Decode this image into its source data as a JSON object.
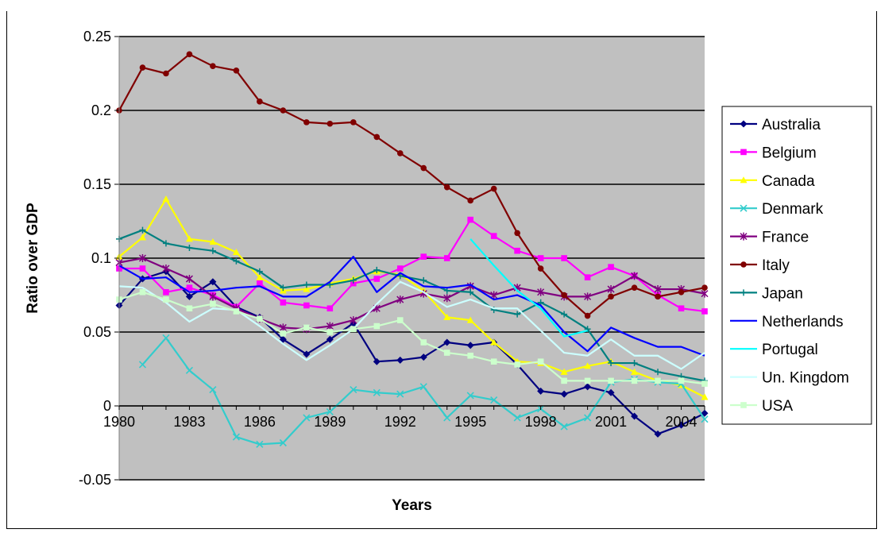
{
  "chart_data": {
    "type": "line",
    "title": "",
    "xlabel": "Years",
    "ylabel": "Ratio over GDP",
    "ylim": [
      -0.05,
      0.25
    ],
    "xlim": [
      1980,
      2005
    ],
    "yticks": [
      "-0.05",
      "0",
      "0.05",
      "0.1",
      "0.15",
      "0.2",
      "0.25"
    ],
    "xticks": [
      "1980",
      "1983",
      "1986",
      "1989",
      "1992",
      "1995",
      "1998",
      "2001",
      "2004"
    ],
    "plot_background": "#c0c0c0",
    "grid": true,
    "legend_position": "right",
    "x": [
      1980,
      1981,
      1982,
      1983,
      1984,
      1985,
      1986,
      1987,
      1988,
      1989,
      1990,
      1991,
      1992,
      1993,
      1994,
      1995,
      1996,
      1997,
      1998,
      1999,
      2000,
      2001,
      2002,
      2003,
      2004,
      2005
    ],
    "series": [
      {
        "name": "Australia",
        "color": "#000080",
        "marker": "diamond",
        "values": [
          0.068,
          0.086,
          0.091,
          0.074,
          0.084,
          0.067,
          0.06,
          0.045,
          0.035,
          0.045,
          0.056,
          0.03,
          0.031,
          0.033,
          0.043,
          0.041,
          0.043,
          0.028,
          0.01,
          0.008,
          0.013,
          0.009,
          -0.007,
          -0.019,
          -0.013,
          -0.005
        ]
      },
      {
        "name": "Belgium",
        "color": "#ff00ff",
        "marker": "square",
        "values": [
          0.093,
          0.093,
          0.077,
          0.08,
          0.075,
          0.067,
          0.083,
          0.07,
          0.068,
          0.066,
          0.083,
          0.086,
          0.093,
          0.101,
          0.1,
          0.126,
          0.115,
          0.105,
          0.1,
          0.1,
          0.087,
          0.094,
          0.088,
          0.075,
          0.066,
          0.064
        ]
      },
      {
        "name": "Canada",
        "color": "#ffff00",
        "marker": "triangle",
        "values": [
          0.101,
          0.114,
          0.14,
          0.113,
          0.111,
          0.104,
          0.087,
          0.078,
          0.079,
          0.083,
          0.086,
          0.091,
          0.089,
          0.078,
          0.06,
          0.058,
          0.043,
          0.03,
          0.029,
          0.023,
          0.027,
          0.03,
          0.023,
          0.017,
          0.014,
          0.006
        ]
      },
      {
        "name": "Denmark",
        "color": "#33cccc",
        "marker": "x",
        "values": [
          null,
          0.028,
          0.046,
          0.024,
          0.011,
          -0.021,
          -0.026,
          -0.025,
          -0.008,
          -0.004,
          0.011,
          0.009,
          0.008,
          0.013,
          -0.008,
          0.007,
          0.004,
          -0.008,
          -0.002,
          -0.014,
          -0.008,
          0.016,
          0.018,
          0.016,
          0.015,
          -0.009
        ]
      },
      {
        "name": "France",
        "color": "#800080",
        "marker": "star",
        "values": [
          0.097,
          0.1,
          0.093,
          0.086,
          0.074,
          0.066,
          0.059,
          0.053,
          0.052,
          0.054,
          0.058,
          0.066,
          0.072,
          0.076,
          0.073,
          0.081,
          0.075,
          0.08,
          0.077,
          0.074,
          0.074,
          0.079,
          0.088,
          0.079,
          0.079,
          0.076
        ]
      },
      {
        "name": "Italy",
        "color": "#800000",
        "marker": "circle",
        "values": [
          0.2,
          0.229,
          0.225,
          0.238,
          0.23,
          0.227,
          0.206,
          0.2,
          0.192,
          0.191,
          0.192,
          0.182,
          0.171,
          0.161,
          0.148,
          0.139,
          0.147,
          0.117,
          0.093,
          0.075,
          0.061,
          0.074,
          0.08,
          0.074,
          0.077,
          0.08
        ]
      },
      {
        "name": "Japan",
        "color": "#008080",
        "marker": "plus",
        "values": [
          0.113,
          0.119,
          0.11,
          0.107,
          0.105,
          0.098,
          0.091,
          0.08,
          0.082,
          0.082,
          0.085,
          0.092,
          0.088,
          0.085,
          0.078,
          0.077,
          0.065,
          0.062,
          0.07,
          0.062,
          0.052,
          0.029,
          0.029,
          0.023,
          0.02,
          0.017
        ]
      },
      {
        "name": "Netherlands",
        "color": "#0000ff",
        "marker": "none",
        "values": [
          0.095,
          0.086,
          0.087,
          0.077,
          0.078,
          0.08,
          0.081,
          0.074,
          0.074,
          0.084,
          0.101,
          0.077,
          0.09,
          0.081,
          0.08,
          0.082,
          0.072,
          0.075,
          0.068,
          0.05,
          0.037,
          0.053,
          0.046,
          0.04,
          0.04,
          0.034
        ]
      },
      {
        "name": "Portugal",
        "color": "#00ffff",
        "marker": "none",
        "values": [
          null,
          null,
          null,
          null,
          null,
          null,
          null,
          null,
          null,
          null,
          null,
          null,
          null,
          null,
          null,
          0.113,
          0.095,
          0.078,
          0.066,
          0.047,
          0.051,
          null,
          null,
          null,
          null,
          null
        ]
      },
      {
        "name": "Un. Kingdom",
        "color": "#ccffff",
        "marker": "none",
        "values": [
          0.081,
          0.08,
          0.07,
          0.057,
          0.066,
          0.065,
          0.054,
          0.042,
          0.031,
          0.041,
          0.052,
          0.069,
          0.084,
          0.077,
          0.067,
          0.072,
          0.066,
          0.066,
          0.051,
          0.036,
          0.034,
          0.045,
          0.034,
          0.034,
          0.025,
          0.036
        ]
      },
      {
        "name": "USA",
        "color": "#ccffcc",
        "marker": "square",
        "values": [
          0.072,
          0.077,
          0.072,
          0.066,
          0.069,
          0.064,
          0.059,
          0.049,
          0.053,
          0.05,
          0.052,
          0.054,
          0.058,
          0.043,
          0.036,
          0.034,
          0.03,
          0.028,
          0.03,
          0.017,
          0.017,
          0.017,
          0.017,
          0.017,
          0.017,
          0.015
        ]
      }
    ]
  }
}
